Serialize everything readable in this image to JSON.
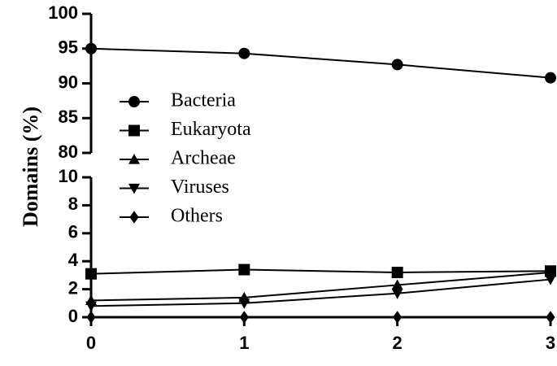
{
  "chart_data": {
    "type": "line",
    "ylabel": "Domains (%)",
    "x": [
      0,
      1,
      2,
      3
    ],
    "xlim": [
      0,
      3
    ],
    "xticks": [
      0,
      1,
      2,
      3
    ],
    "ylim": [
      0,
      100
    ],
    "ybreak": [
      10,
      80
    ],
    "yticks": [
      0,
      2,
      4,
      6,
      8,
      10,
      80,
      85,
      90,
      95,
      100
    ],
    "legend": "upper left",
    "series": [
      {
        "name": "Bacteria",
        "color": "#000000",
        "marker": "circle",
        "values": [
          95,
          94.3,
          92.7,
          90.8
        ]
      },
      {
        "name": "Eukaryota",
        "color": "#000000",
        "marker": "square",
        "values": [
          3.1,
          3.4,
          3.2,
          3.3
        ]
      },
      {
        "name": "Archeae",
        "color": "#000000",
        "marker": "triangle-up",
        "values": [
          1.2,
          1.4,
          2.3,
          3.2
        ]
      },
      {
        "name": "Viruses",
        "color": "#000000",
        "marker": "triangle-down",
        "values": [
          0.8,
          1.0,
          1.7,
          2.7
        ]
      },
      {
        "name": "Others",
        "color": "#000000",
        "marker": "diamond",
        "values": [
          0,
          0,
          0,
          0
        ]
      }
    ]
  }
}
